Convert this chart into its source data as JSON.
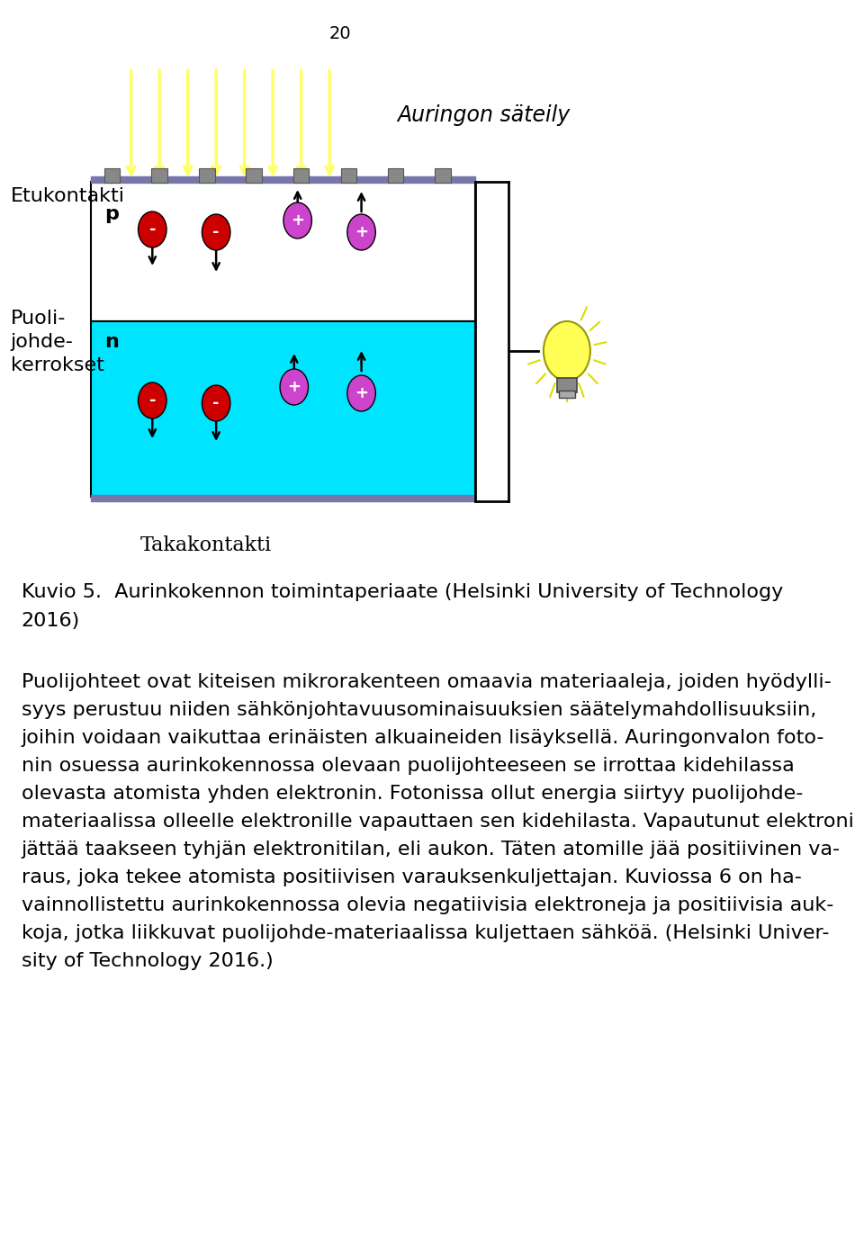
{
  "page_number": "20",
  "bg_color": "#ffffff",
  "label_etukontakti": "Etukontakti",
  "label_puolijohde": "Puoli-\njohde-\nkerrokset",
  "label_auringon": "Auringon säteily",
  "label_takakontakti": "Takakontakti",
  "label_p": "p",
  "label_n": "n",
  "p_layer_color": "#ffffff",
  "n_layer_color": "#00e5ff",
  "top_bar_color": "#7777aa",
  "bottom_bar_color": "#7777aa",
  "arrow_color_sun": "#ffff66",
  "neg_electron_color": "#cc0000",
  "pos_hole_color": "#cc44cc",
  "caption_line1": "Kuvio 5.  Aurinkokennon toimintaperiaate (Helsinki University of Technology",
  "caption_line2": "2016)",
  "body_lines": [
    "Puolijohteet ovat kiteisen mikrorakenteen omaavia materiaaleja, joiden hyödylli-",
    "syys perustuu niiden sähkönjohtavuusominaisuuksien säätelymahdollisuuksiin,",
    "joihin voidaan vaikuttaa erinäisten alkuaineiden lisäyksellä. Auringonvalon foto-",
    "nin osuessa aurinkokennossa olevaan puolijohteeseen se irrottaa kidehilassa",
    "olevasta atomista yhden elektronin. Fotonissa ollut energia siirtyy puolijohde-",
    "materiaalissa olleelle elektronille vapauttaen sen kidehilasta. Vapautunut elektroni",
    "jättää taakseen tyhjän elektronitilan, eli aukon. Täten atomille jää positiivinen va-",
    "raus, joka tekee atomista positiivisen varauksenkuljettajan. Kuviossa 6 on ha-",
    "vainnollistettu aurinkokennossa olevia negatiivisia elektroneja ja positiivisia auk-",
    "koja, jotka liikkuvat puolijohde­materiaalissa kuljettaen sähköä. (Helsinki Univer-",
    "sity of Technology 2016.)"
  ]
}
